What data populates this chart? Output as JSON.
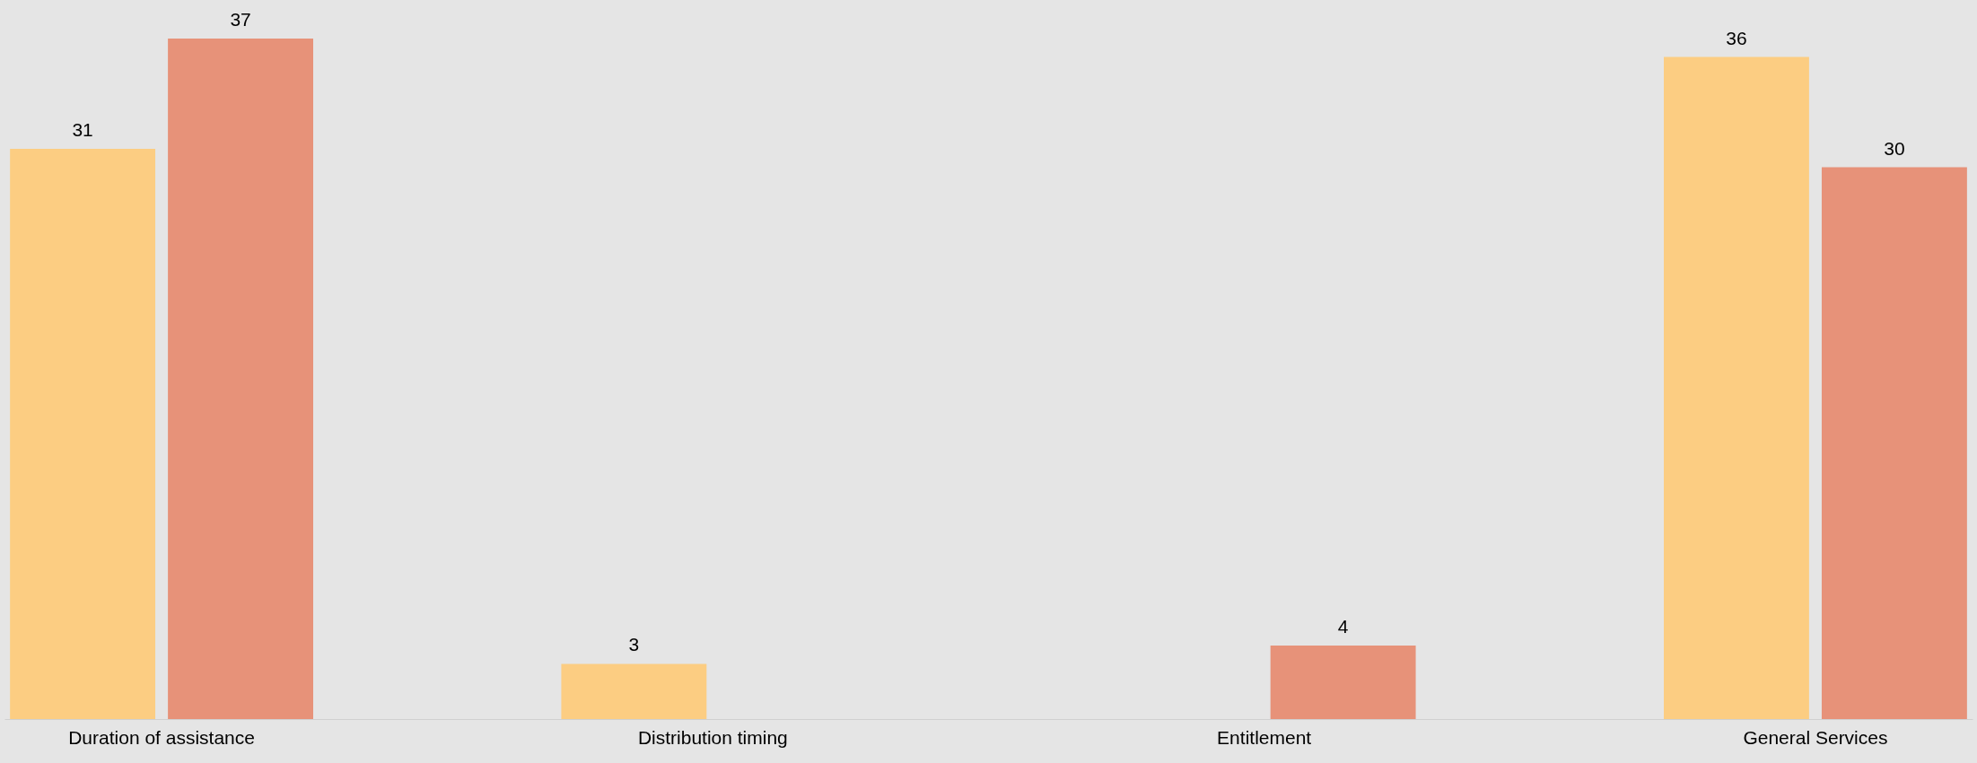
{
  "chart_data": {
    "type": "bar",
    "categories": [
      "Duration of assistance",
      "Distribution timing",
      "Entitlement",
      "General Services"
    ],
    "series": [
      {
        "color": "#fccd82",
        "values": [
          31,
          3,
          null,
          36
        ]
      },
      {
        "color": "#e79279",
        "values": [
          37,
          null,
          4,
          30
        ]
      }
    ],
    "data_labels": true,
    "grid": false,
    "legend": false
  }
}
